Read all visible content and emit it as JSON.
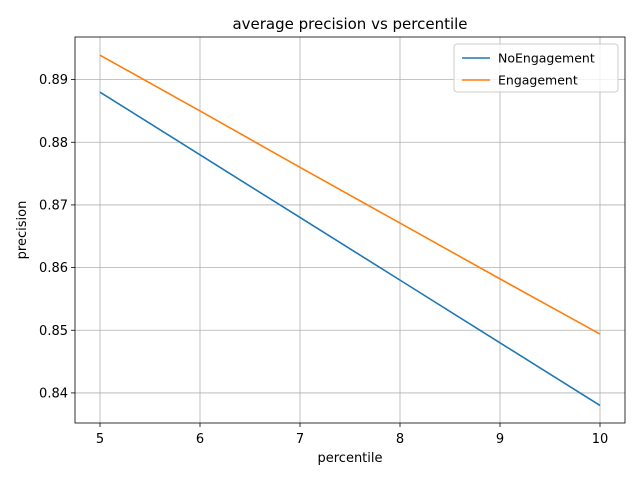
{
  "chart_data": {
    "type": "line",
    "title": "average precision vs percentile",
    "xlabel": "percentile",
    "ylabel": "precision",
    "xlim": [
      4.75,
      10.25
    ],
    "ylim": [
      0.8352,
      0.8968
    ],
    "xticks": [
      5,
      6,
      7,
      8,
      9,
      10
    ],
    "yticks": [
      0.84,
      0.85,
      0.86,
      0.87,
      0.88,
      0.89
    ],
    "grid": true,
    "legend_position": "upper-right",
    "x": [
      5,
      6,
      7,
      8,
      9,
      10
    ],
    "series": [
      {
        "name": "NoEngagement",
        "color": "#1f77b4",
        "values": [
          0.888,
          0.878,
          0.868,
          0.858,
          0.848,
          0.838
        ]
      },
      {
        "name": "Engagement",
        "color": "#ff7f0e",
        "values": [
          0.8939,
          0.885,
          0.876,
          0.8671,
          0.8582,
          0.8494
        ]
      }
    ]
  }
}
